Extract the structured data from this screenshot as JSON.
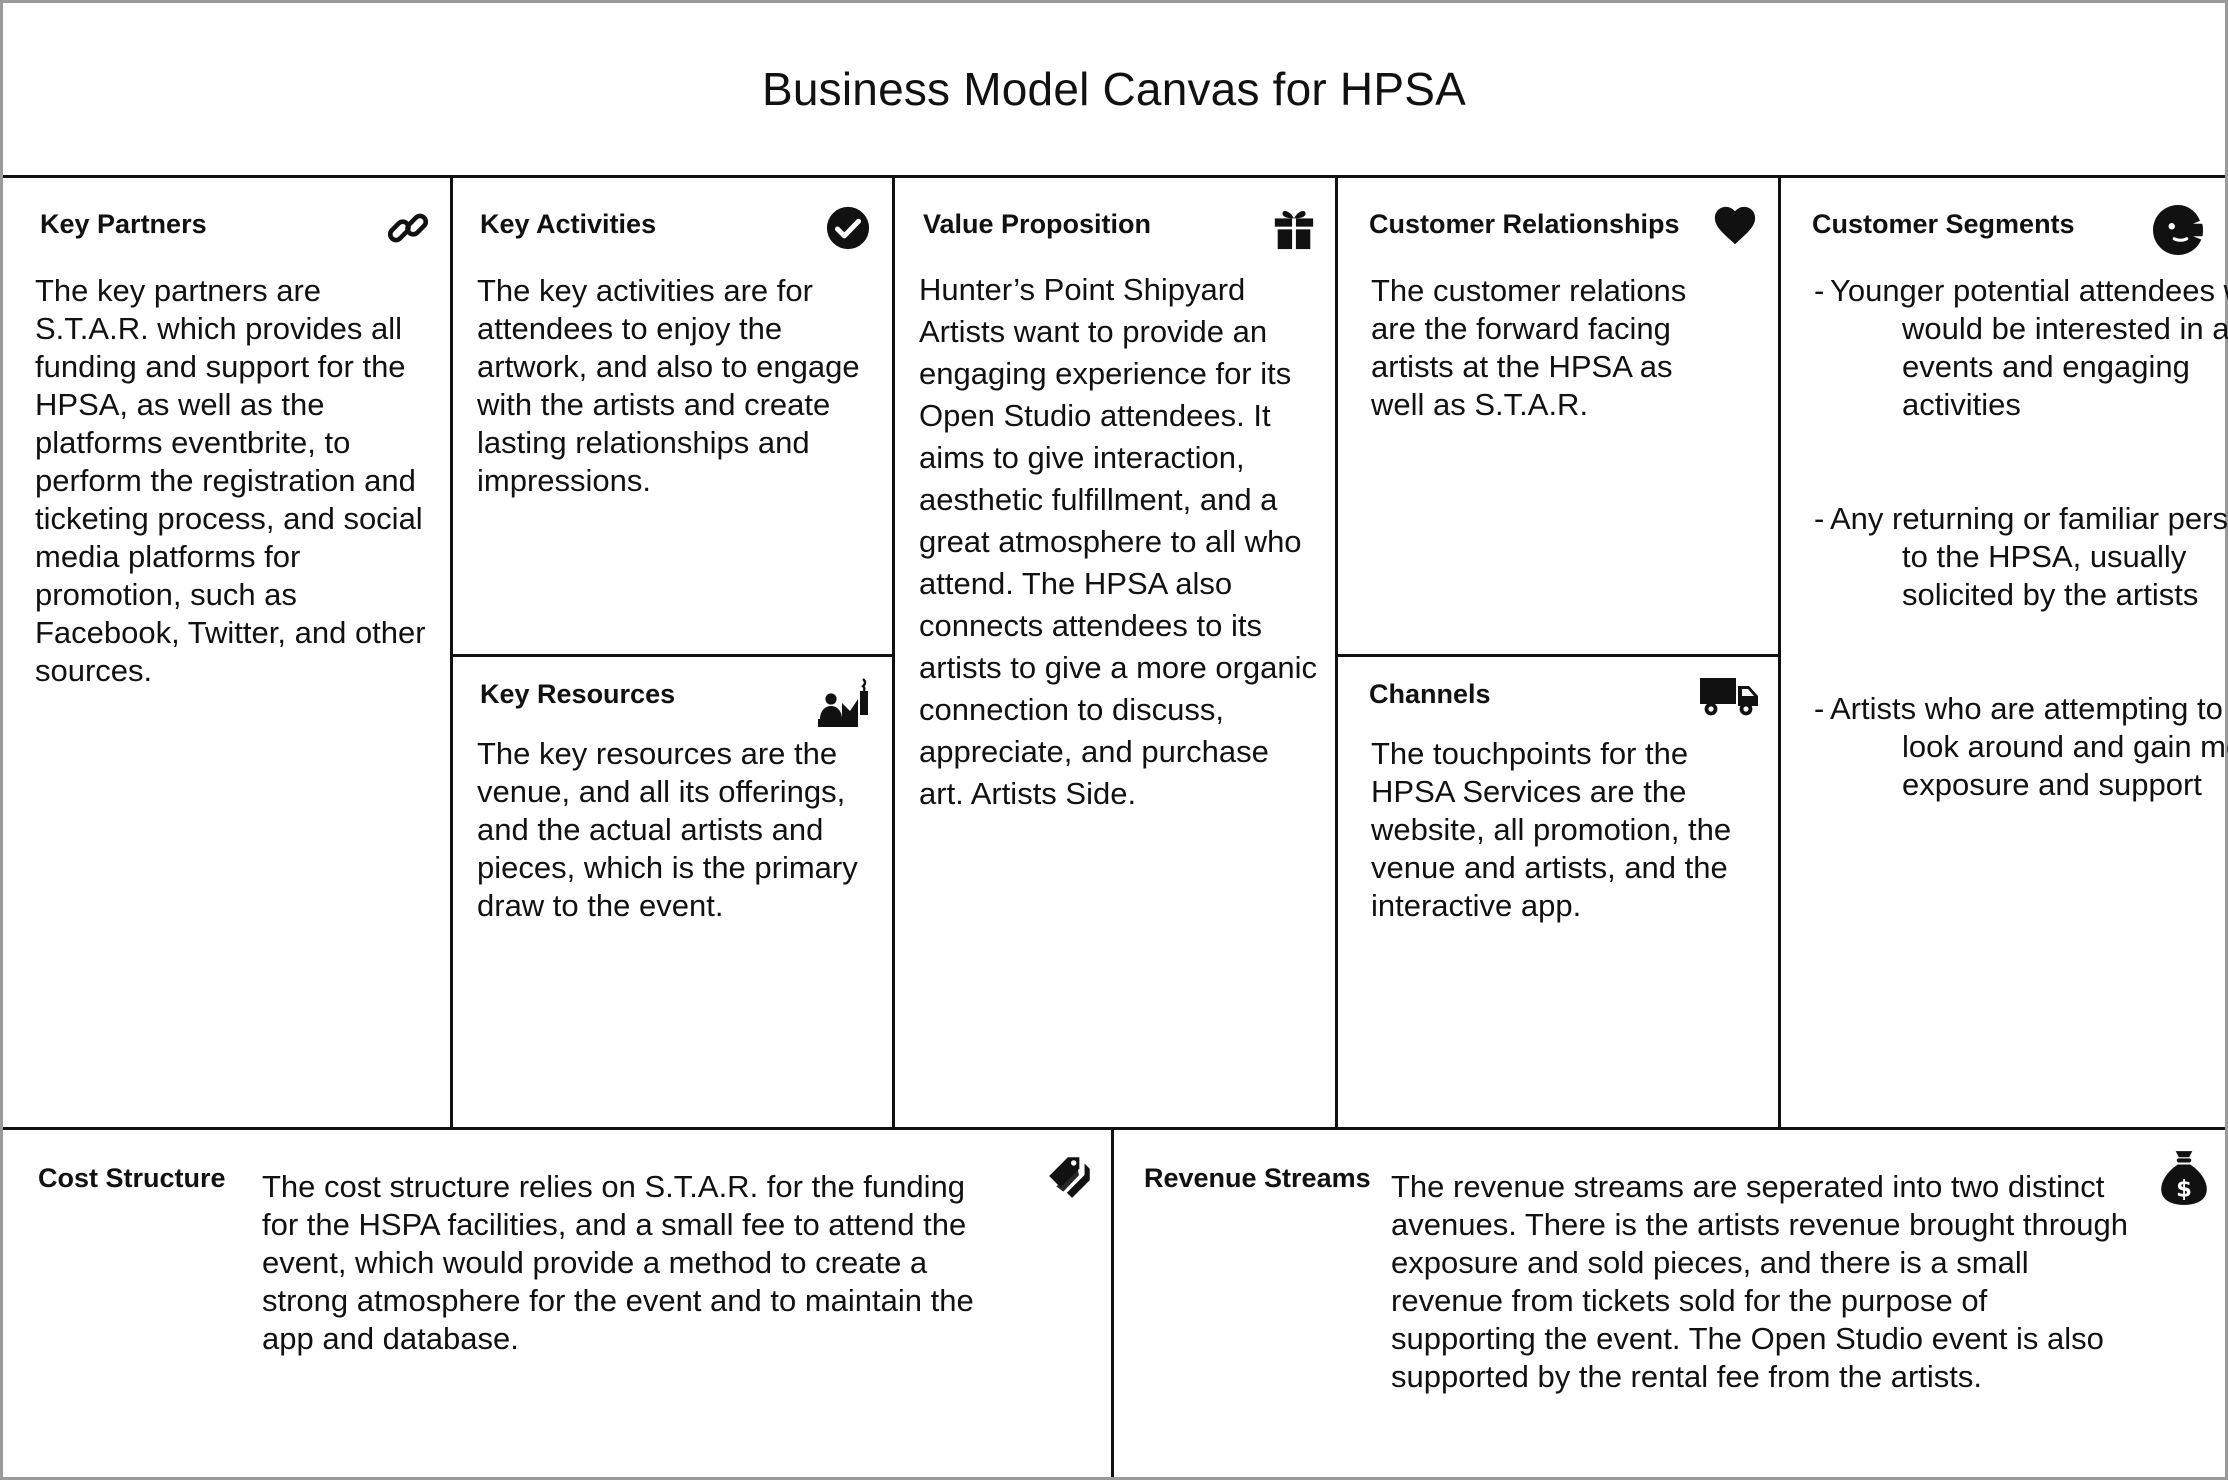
{
  "title": "Business Model Canvas for HPSA",
  "blocks": {
    "key_partners": {
      "title": "Key Partners",
      "icon": "link-icon",
      "text": "The key partners are S.T.A.R. which provides all funding and support for the HPSA, as well as the platforms eventbrite, to perform the registration and ticketing process, and social media platforms for promotion, such as Facebook, Twitter, and other sources."
    },
    "key_activities": {
      "title": "Key Activities",
      "icon": "check-circle-icon",
      "text": "The key activities are for attendees to enjoy the artwork, and also to engage with the artists and create lasting relationships and impressions."
    },
    "key_resources": {
      "title": "Key Resources",
      "icon": "factory-icon",
      "text": "The key resources are the venue, and all its offerings, and the actual artists and pieces, which is the primary draw to the event."
    },
    "value_proposition": {
      "title": "Value Proposition",
      "icon": "gift-icon",
      "text": "Hunter’s Point Shipyard Artists want to provide an engaging experience for its Open Studio attendees.  It aims to give interaction, aesthetic fulfillment, and a great atmosphere to all who attend.  The HPSA also connects attendees to its artists to give a more organic connection to discuss, appreciate, and purchase art.  Artists Side."
    },
    "customer_relationships": {
      "title": "Customer Relationships",
      "icon": "heart-icon",
      "text": "The customer relations are the forward facing artists at the HPSA as well as S.T.A.R."
    },
    "channels": {
      "title": "Channels",
      "icon": "truck-icon",
      "text": "The touchpoints for the HPSA Services are the website, all promotion, the venue and artists, and the interactive app."
    },
    "customer_segments": {
      "title": "Customer Segments",
      "icon": "face-icon",
      "items": [
        "Younger potential attendees who would be interested in art events and engaging activities",
        "Any returning or familiar person to the HPSA, usually solicited by the artists",
        "Artists who are attempting to look around and gain more exposure and support"
      ]
    },
    "cost_structure": {
      "title": "Cost Structure",
      "icon": "tag-icon",
      "text": "The cost structure relies on S.T.A.R. for the funding for the HSPA facilities, and a small fee to attend the event, which would provide a method to create a strong atmosphere for the event and to maintain the app and database."
    },
    "revenue_streams": {
      "title": "Revenue Streams",
      "icon": "money-bag-icon",
      "text": "The revenue streams are seperated into two distinct avenues.  There is the artists revenue brought through exposure and sold pieces, and there is a small revenue from tickets sold for the purpose of supporting the event.  The Open Studio event is also supported by the rental fee from the artists."
    }
  }
}
